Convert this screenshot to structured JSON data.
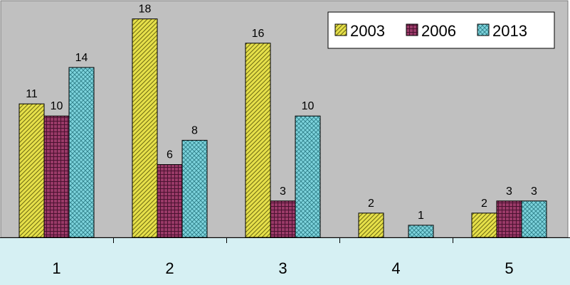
{
  "chart_data": {
    "type": "bar",
    "categories": [
      "1",
      "2",
      "3",
      "4",
      "5"
    ],
    "series": [
      {
        "name": "2003",
        "values": [
          11,
          18,
          16,
          2,
          2
        ],
        "pattern": "diagonal-hatch",
        "color": "#e6e04a"
      },
      {
        "name": "2006",
        "values": [
          10,
          6,
          3,
          null,
          3
        ],
        "pattern": "grid",
        "color": "#9a3a68"
      },
      {
        "name": "2013",
        "values": [
          14,
          8,
          10,
          1,
          3
        ],
        "pattern": "crosshatch",
        "color": "#7ed4dd"
      }
    ],
    "data_labels": true,
    "ylim": [
      0,
      19.5
    ],
    "grid": false,
    "legend": "top-right",
    "plot_background": "#c0c0c0",
    "axis_band_background": "#d6f0f3"
  }
}
